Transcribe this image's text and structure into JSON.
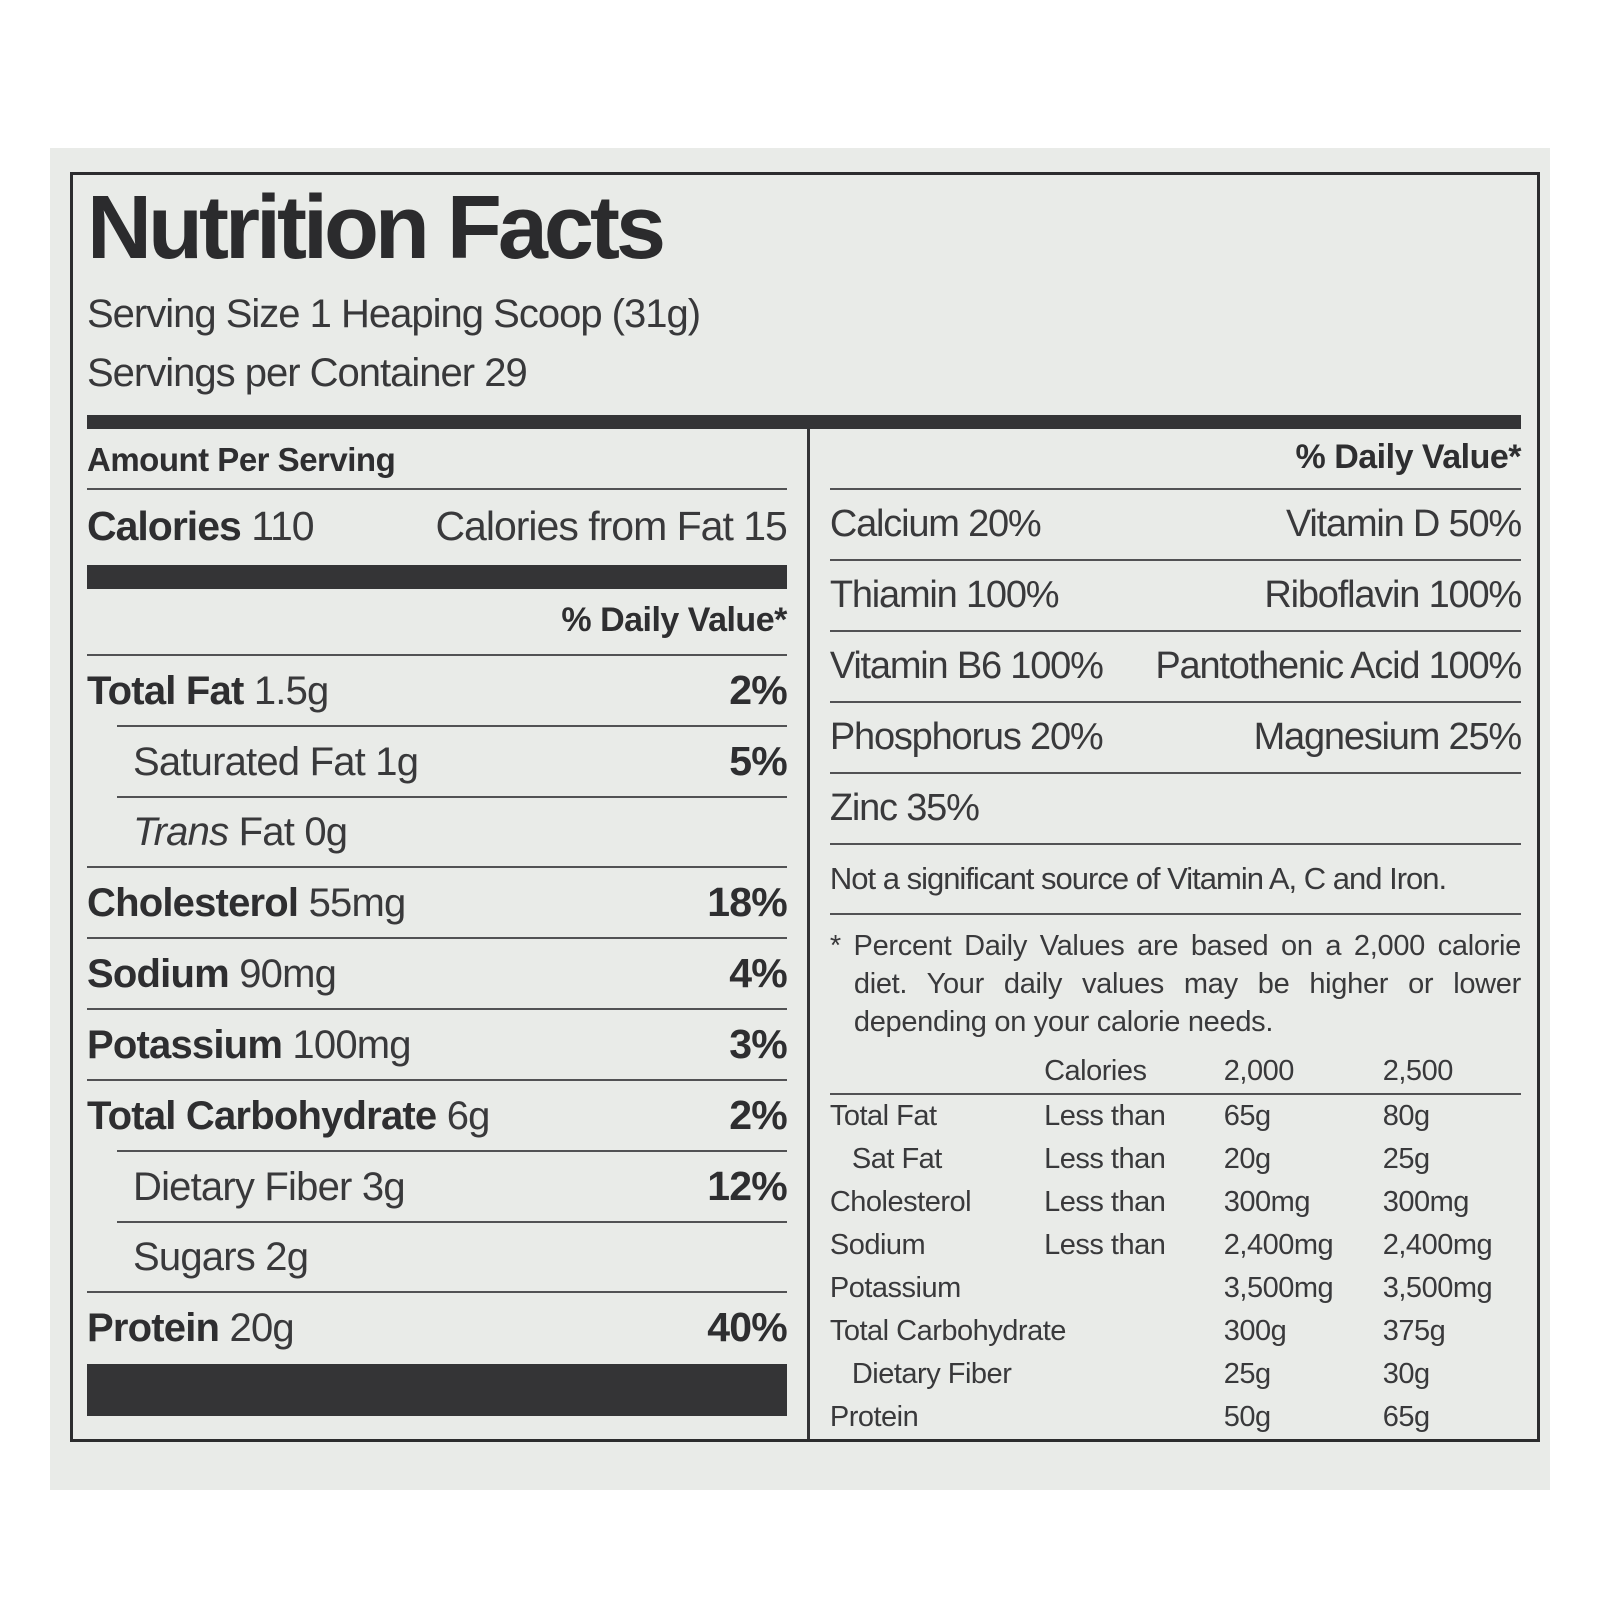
{
  "theme": {
    "page_background": "#ffffff",
    "paper_background": "#e9ebe8",
    "ink": "#39393b",
    "bold_ink": "#2e2e30",
    "bar_color": "#343436",
    "rule_color": "#525254"
  },
  "label": {
    "title": "Nutrition Facts",
    "serving_size": "Serving Size 1 Heaping Scoop (31g)",
    "servings_per_container": "Servings per Container 29",
    "amount_per_serving": "Amount Per Serving",
    "calories_label": "Calories",
    "calories_value": "110",
    "calories_from_fat": "Calories from Fat 15",
    "daily_value_header": "% Daily Value*",
    "nutrients": [
      {
        "name": "Total Fat",
        "amount": "1.5g",
        "dv": "2%"
      },
      {
        "name": "Saturated Fat",
        "amount": "1g",
        "dv": "5%"
      },
      {
        "name_italic": "Trans",
        "name": "Fat",
        "amount": "0g",
        "dv": ""
      },
      {
        "name": "Cholesterol",
        "amount": "55mg",
        "dv": "18%"
      },
      {
        "name": "Sodium",
        "amount": "90mg",
        "dv": "4%"
      },
      {
        "name": "Potassium",
        "amount": "100mg",
        "dv": "3%"
      },
      {
        "name": "Total Carbohydrate",
        "amount": "6g",
        "dv": "2%"
      },
      {
        "name": "Dietary Fiber",
        "amount": "3g",
        "dv": "12%"
      },
      {
        "name": "Sugars",
        "amount": "2g",
        "dv": ""
      },
      {
        "name": "Protein",
        "amount": "20g",
        "dv": "40%"
      }
    ],
    "micronutrients": [
      {
        "left": "Calcium 20%",
        "right": "Vitamin D 50%"
      },
      {
        "left": "Thiamin 100%",
        "right": "Riboflavin 100%"
      },
      {
        "left": "Vitamin B6 100%",
        "right": "Pantothenic Acid 100%"
      },
      {
        "left": "Phosphorus 20%",
        "right": "Magnesium 25%"
      },
      {
        "left": "Zinc 35%",
        "right": ""
      }
    ],
    "insignificant_note": "Not a significant source of Vitamin A, C and Iron.",
    "footnote": "* Percent Daily Values are based on a 2,000 calorie diet. Your daily values may be higher or lower depending on your calorie needs.",
    "dv_table": {
      "header": {
        "c1": "",
        "c2": "Calories",
        "c3": "2,000",
        "c4": "2,500"
      },
      "rows": [
        {
          "c1": "Total Fat",
          "c2": "Less than",
          "c3": "65g",
          "c4": "80g"
        },
        {
          "c1": "Sat Fat",
          "c2": "Less than",
          "c3": "20g",
          "c4": "25g"
        },
        {
          "c1": "Cholesterol",
          "c2": "Less than",
          "c3": "300mg",
          "c4": "300mg"
        },
        {
          "c1": "Sodium",
          "c2": "Less than",
          "c3": "2,400mg",
          "c4": "2,400mg"
        },
        {
          "c1": "Potassium",
          "c2": "",
          "c3": "3,500mg",
          "c4": "3,500mg"
        },
        {
          "c1": "Total Carbohydrate",
          "c2": "",
          "c3": "300g",
          "c4": "375g"
        },
        {
          "c1": "Dietary Fiber",
          "c2": "",
          "c3": "25g",
          "c4": "30g"
        },
        {
          "c1": "Protein",
          "c2": "",
          "c3": "50g",
          "c4": "65g"
        }
      ]
    }
  }
}
